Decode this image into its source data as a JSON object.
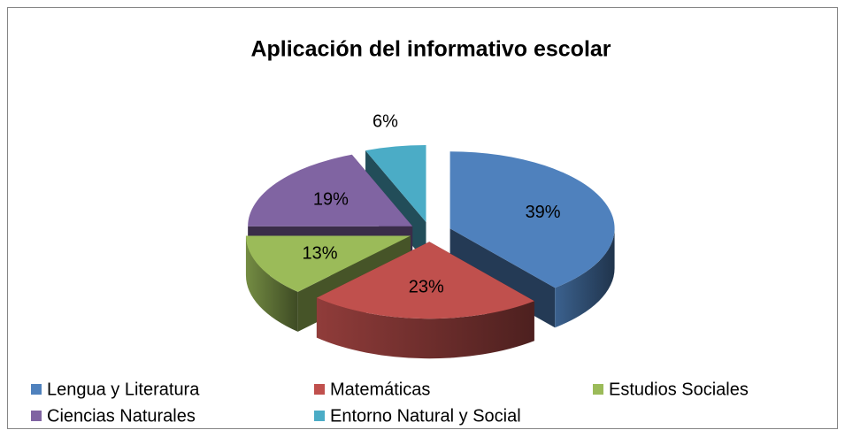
{
  "chart_data": {
    "type": "pie3d",
    "title": "Aplicación del informativo escolar",
    "categories": [
      "Lengua y Literatura",
      "Matemáticas",
      "Estudios Sociales",
      "Ciencias Naturales",
      "Entorno Natural y Social"
    ],
    "values": [
      39,
      23,
      13,
      19,
      6
    ],
    "value_labels": [
      "39%",
      "23%",
      "13%",
      "19%",
      "6%"
    ],
    "colors": [
      "#4f81bd",
      "#c0504d",
      "#9bbb59",
      "#8064a2",
      "#4bacc6"
    ],
    "legend": "bottom"
  }
}
